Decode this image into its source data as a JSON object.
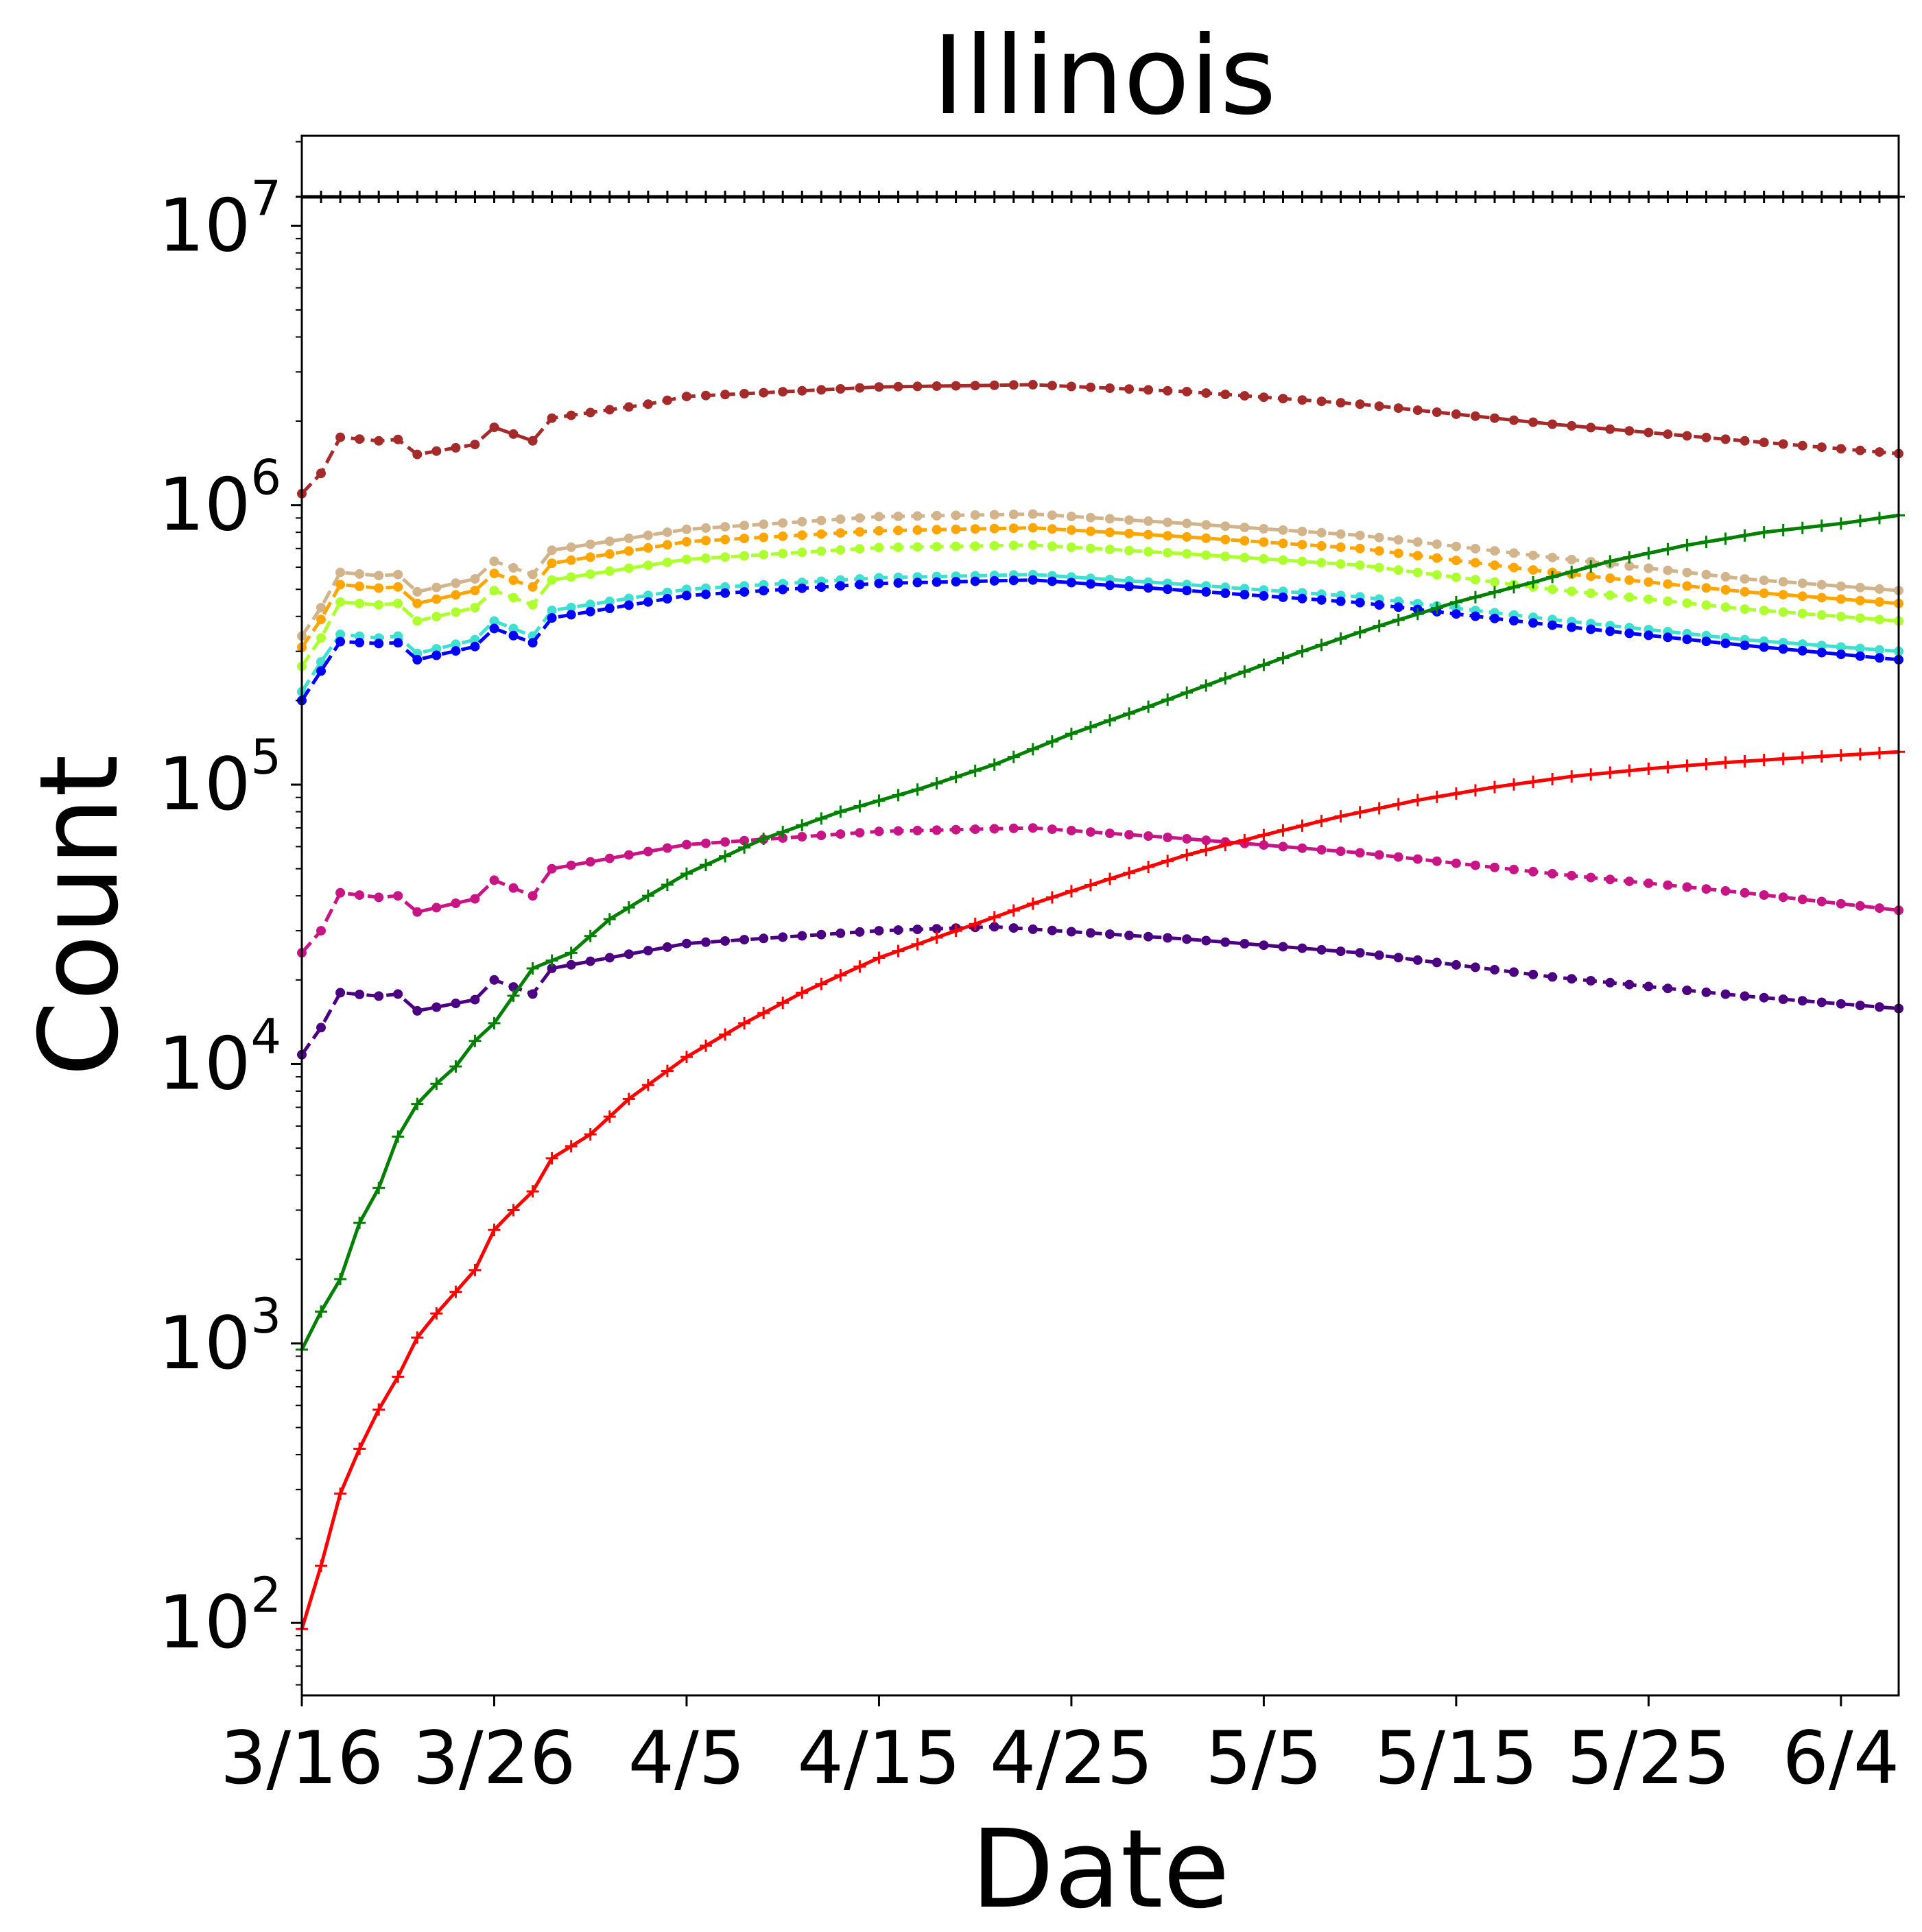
{
  "chart_data": {
    "type": "line",
    "title": "Illinois",
    "xlabel": "Date",
    "ylabel": "Count",
    "yscale": "log",
    "ylim": [
      55,
      21000000
    ],
    "x_start": "3/16",
    "x_end": "6/7",
    "xticks": [
      {
        "date": "3/16",
        "label": "3/16"
      },
      {
        "date": "3/26",
        "label": "3/26"
      },
      {
        "date": "4/5",
        "label": "4/5"
      },
      {
        "date": "4/15",
        "label": "4/15"
      },
      {
        "date": "4/25",
        "label": "4/25"
      },
      {
        "date": "5/5",
        "label": "5/5"
      },
      {
        "date": "5/15",
        "label": "5/15"
      },
      {
        "date": "5/25",
        "label": "5/25"
      },
      {
        "date": "6/4",
        "label": "6/4"
      }
    ],
    "yticks": [
      {
        "value": 100,
        "base": "10",
        "exp": "2"
      },
      {
        "value": 1000,
        "base": "10",
        "exp": "3"
      },
      {
        "value": 10000,
        "base": "10",
        "exp": "4"
      },
      {
        "value": 100000,
        "base": "10",
        "exp": "5"
      },
      {
        "value": 1000000,
        "base": "10",
        "exp": "6"
      },
      {
        "value": 10000000,
        "base": "10",
        "exp": "7"
      }
    ],
    "grid": false,
    "legend": "none",
    "series": [
      {
        "color": "#000000",
        "style": "solid",
        "marker": "plus",
        "points": [
          [
            "3/16",
            12700000
          ],
          [
            "6/7",
            12700000
          ]
        ]
      },
      {
        "color": "#a52a2a",
        "style": "dashed",
        "marker": "dot",
        "points": [
          [
            "3/16",
            1100000
          ],
          [
            "3/17",
            1300000
          ],
          [
            "3/18",
            1750000
          ],
          [
            "3/20",
            1700000
          ],
          [
            "3/21",
            1720000
          ],
          [
            "3/22",
            1520000
          ],
          [
            "3/25",
            1650000
          ],
          [
            "3/26",
            1900000
          ],
          [
            "3/28",
            1700000
          ],
          [
            "3/29",
            2050000
          ],
          [
            "4/3",
            2300000
          ],
          [
            "4/5",
            2450000
          ],
          [
            "4/15",
            2650000
          ],
          [
            "4/23",
            2700000
          ],
          [
            "5/1",
            2550000
          ],
          [
            "5/10",
            2300000
          ],
          [
            "5/20",
            1950000
          ],
          [
            "5/30",
            1700000
          ],
          [
            "6/7",
            1530000
          ]
        ]
      },
      {
        "color": "#d2b48c",
        "style": "dashed",
        "marker": "dot",
        "points": [
          [
            "3/16",
            340000
          ],
          [
            "3/17",
            430000
          ],
          [
            "3/18",
            575000
          ],
          [
            "3/20",
            560000
          ],
          [
            "3/21",
            565000
          ],
          [
            "3/22",
            490000
          ],
          [
            "3/25",
            545000
          ],
          [
            "3/26",
            630000
          ],
          [
            "3/28",
            565000
          ],
          [
            "3/29",
            690000
          ],
          [
            "4/5",
            820000
          ],
          [
            "4/15",
            910000
          ],
          [
            "4/23",
            930000
          ],
          [
            "5/1",
            860000
          ],
          [
            "5/10",
            780000
          ],
          [
            "5/20",
            650000
          ],
          [
            "5/30",
            545000
          ],
          [
            "6/7",
            495000
          ]
        ]
      },
      {
        "color": "#ffa500",
        "style": "dashed",
        "marker": "dot",
        "points": [
          [
            "3/16",
            310000
          ],
          [
            "3/17",
            390000
          ],
          [
            "3/18",
            520000
          ],
          [
            "3/20",
            505000
          ],
          [
            "3/21",
            510000
          ],
          [
            "3/22",
            445000
          ],
          [
            "3/25",
            495000
          ],
          [
            "3/26",
            570000
          ],
          [
            "3/28",
            510000
          ],
          [
            "3/29",
            620000
          ],
          [
            "4/5",
            740000
          ],
          [
            "4/15",
            810000
          ],
          [
            "4/23",
            830000
          ],
          [
            "5/1",
            770000
          ],
          [
            "5/10",
            700000
          ],
          [
            "5/20",
            575000
          ],
          [
            "5/30",
            490000
          ],
          [
            "6/7",
            445000
          ]
        ]
      },
      {
        "color": "#adff2f",
        "style": "dashed",
        "marker": "dot",
        "points": [
          [
            "3/16",
            265000
          ],
          [
            "3/17",
            335000
          ],
          [
            "3/18",
            450000
          ],
          [
            "3/20",
            440000
          ],
          [
            "3/21",
            445000
          ],
          [
            "3/22",
            385000
          ],
          [
            "3/25",
            430000
          ],
          [
            "3/26",
            495000
          ],
          [
            "3/28",
            440000
          ],
          [
            "3/29",
            540000
          ],
          [
            "4/5",
            640000
          ],
          [
            "4/15",
            705000
          ],
          [
            "4/23",
            720000
          ],
          [
            "5/1",
            670000
          ],
          [
            "5/10",
            610000
          ],
          [
            "5/20",
            500000
          ],
          [
            "5/30",
            425000
          ],
          [
            "6/7",
            385000
          ]
        ]
      },
      {
        "color": "#40e0d0",
        "style": "dashed",
        "marker": "dot",
        "points": [
          [
            "3/16",
            215000
          ],
          [
            "3/17",
            275000
          ],
          [
            "3/18",
            345000
          ],
          [
            "3/20",
            335000
          ],
          [
            "3/21",
            340000
          ],
          [
            "3/22",
            295000
          ],
          [
            "3/25",
            330000
          ],
          [
            "3/26",
            385000
          ],
          [
            "3/28",
            340000
          ],
          [
            "3/29",
            420000
          ],
          [
            "4/5",
            500000
          ],
          [
            "4/15",
            550000
          ],
          [
            "4/23",
            565000
          ],
          [
            "5/1",
            520000
          ],
          [
            "5/10",
            470000
          ],
          [
            "5/20",
            390000
          ],
          [
            "5/30",
            330000
          ],
          [
            "6/7",
            300000
          ]
        ]
      },
      {
        "color": "#0000ff",
        "style": "dashed",
        "marker": "dot",
        "points": [
          [
            "3/16",
            200000
          ],
          [
            "3/17",
            255000
          ],
          [
            "3/18",
            325000
          ],
          [
            "3/20",
            320000
          ],
          [
            "3/21",
            322000
          ],
          [
            "3/22",
            280000
          ],
          [
            "3/25",
            312000
          ],
          [
            "3/26",
            362000
          ],
          [
            "3/28",
            322000
          ],
          [
            "3/29",
            395000
          ],
          [
            "4/5",
            475000
          ],
          [
            "4/15",
            525000
          ],
          [
            "4/23",
            540000
          ],
          [
            "5/1",
            495000
          ],
          [
            "5/10",
            448000
          ],
          [
            "5/20",
            372000
          ],
          [
            "5/30",
            315000
          ],
          [
            "6/7",
            280000
          ]
        ]
      },
      {
        "color": "#c71585",
        "style": "dashed",
        "marker": "dot",
        "points": [
          [
            "3/16",
            25000
          ],
          [
            "3/17",
            30000
          ],
          [
            "3/18",
            41000
          ],
          [
            "3/20",
            39500
          ],
          [
            "3/21",
            40000
          ],
          [
            "3/22",
            35000
          ],
          [
            "3/25",
            39000
          ],
          [
            "3/26",
            45500
          ],
          [
            "3/28",
            40000
          ],
          [
            "3/29",
            50000
          ],
          [
            "4/5",
            61000
          ],
          [
            "4/15",
            68000
          ],
          [
            "4/23",
            70000
          ],
          [
            "5/1",
            64000
          ],
          [
            "5/10",
            57000
          ],
          [
            "5/20",
            48000
          ],
          [
            "5/30",
            41000
          ],
          [
            "6/7",
            35500
          ]
        ]
      },
      {
        "color": "#4b0082",
        "style": "dashed",
        "marker": "dot",
        "points": [
          [
            "3/16",
            10800
          ],
          [
            "3/17",
            13500
          ],
          [
            "3/18",
            18000
          ],
          [
            "3/20",
            17500
          ],
          [
            "3/21",
            17800
          ],
          [
            "3/22",
            15500
          ],
          [
            "3/25",
            17000
          ],
          [
            "3/26",
            20000
          ],
          [
            "3/28",
            17800
          ],
          [
            "3/29",
            22000
          ],
          [
            "4/5",
            27000
          ],
          [
            "4/15",
            30000
          ],
          [
            "4/21",
            31000
          ],
          [
            "5/1",
            28000
          ],
          [
            "5/10",
            25000
          ],
          [
            "5/20",
            20500
          ],
          [
            "5/30",
            17500
          ],
          [
            "6/7",
            15800
          ]
        ]
      },
      {
        "color": "#008000",
        "style": "solid",
        "marker": "plus",
        "points": [
          [
            "3/16",
            950
          ],
          [
            "3/17",
            1300
          ],
          [
            "3/18",
            1700
          ],
          [
            "3/19",
            2700
          ],
          [
            "3/20",
            3600
          ],
          [
            "3/21",
            5500
          ],
          [
            "3/22",
            7200
          ],
          [
            "3/23",
            8500
          ],
          [
            "3/24",
            9800
          ],
          [
            "3/25",
            12100
          ],
          [
            "3/26",
            14000
          ],
          [
            "3/28",
            22000
          ],
          [
            "3/30",
            25000
          ],
          [
            "4/1",
            33000
          ],
          [
            "4/3",
            40000
          ],
          [
            "4/5",
            48000
          ],
          [
            "4/9",
            64000
          ],
          [
            "4/13",
            80000
          ],
          [
            "4/17",
            96000
          ],
          [
            "4/21",
            118000
          ],
          [
            "4/25",
            152000
          ],
          [
            "4/29",
            190000
          ],
          [
            "5/3",
            240000
          ],
          [
            "5/7",
            300000
          ],
          [
            "5/11",
            370000
          ],
          [
            "5/15",
            450000
          ],
          [
            "5/19",
            530000
          ],
          [
            "5/23",
            630000
          ],
          [
            "5/27",
            720000
          ],
          [
            "5/31",
            800000
          ],
          [
            "6/4",
            860000
          ],
          [
            "6/7",
            920000
          ]
        ]
      },
      {
        "color": "#ff0000",
        "style": "solid",
        "marker": "plus",
        "points": [
          [
            "3/16",
            95
          ],
          [
            "3/17",
            160
          ],
          [
            "3/18",
            290
          ],
          [
            "3/19",
            420
          ],
          [
            "3/20",
            580
          ],
          [
            "3/21",
            760
          ],
          [
            "3/22",
            1050
          ],
          [
            "3/23",
            1280
          ],
          [
            "3/24",
            1530
          ],
          [
            "3/25",
            1830
          ],
          [
            "3/26",
            2550
          ],
          [
            "3/27",
            3000
          ],
          [
            "3/28",
            3500
          ],
          [
            "3/29",
            4600
          ],
          [
            "3/31",
            5600
          ],
          [
            "4/2",
            7500
          ],
          [
            "4/5",
            10600
          ],
          [
            "4/8",
            14000
          ],
          [
            "4/11",
            18000
          ],
          [
            "4/15",
            24000
          ],
          [
            "4/19",
            30000
          ],
          [
            "4/23",
            37500
          ],
          [
            "4/27",
            46000
          ],
          [
            "5/1",
            56000
          ],
          [
            "5/5",
            66000
          ],
          [
            "5/9",
            77000
          ],
          [
            "5/13",
            88000
          ],
          [
            "5/17",
            98000
          ],
          [
            "5/21",
            107000
          ],
          [
            "5/25",
            114000
          ],
          [
            "5/29",
            120000
          ],
          [
            "6/2",
            125000
          ],
          [
            "6/7",
            131000
          ]
        ]
      }
    ]
  }
}
